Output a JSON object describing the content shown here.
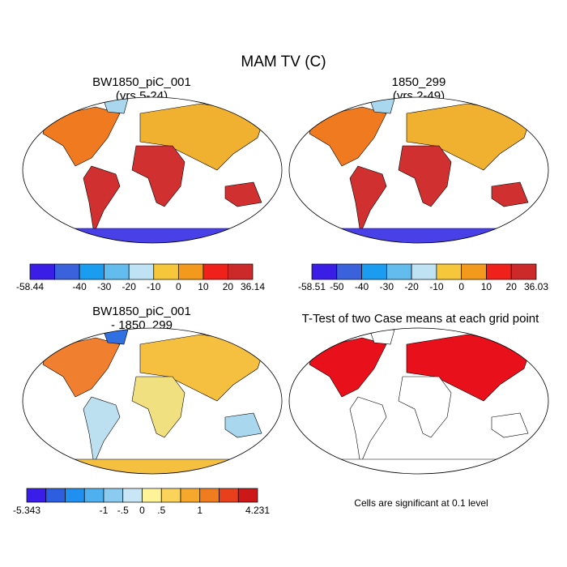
{
  "title": "MAM TV (C)",
  "panels": [
    {
      "title": [
        "BW1850_piC_001",
        "(yrs 5-24)"
      ]
    },
    {
      "title": [
        "1850_299",
        "(yrs 2-49)"
      ]
    },
    {
      "title": [
        "BW1850_piC_001",
        "- 1850_299"
      ]
    },
    {
      "title": [
        "T-Test of two Case means at each grid point"
      ]
    }
  ],
  "colorbars": [
    {
      "colors": [
        "#3b1ee6",
        "#3a62dc",
        "#1a9cf0",
        "#62bdee",
        "#bfe3f4",
        "#f6c73a",
        "#f39a1c",
        "#f0201a",
        "#cc2a2a"
      ],
      "labels": [
        "-58.44",
        null,
        "-40",
        "-30",
        "-20",
        "-10",
        "0",
        "10",
        "20",
        "36.14"
      ]
    },
    {
      "colors": [
        "#3b1ee6",
        "#3a62dc",
        "#1a9cf0",
        "#62bdee",
        "#bfe3f4",
        "#f6c73a",
        "#f39a1c",
        "#f0201a",
        "#cc2a2a"
      ],
      "labels": [
        "-58.51",
        "-50",
        "-40",
        "-30",
        "-20",
        "-10",
        "0",
        "10",
        "20",
        "36.03"
      ]
    },
    {
      "colors": [
        "#3a1de8",
        "#2e5ee0",
        "#1f8ff0",
        "#4fb0f0",
        "#8ccbf0",
        "#c8e6f5",
        "#fff39a",
        "#fbd25a",
        "#f6a82c",
        "#f07c20",
        "#e8401c",
        "#cc1818"
      ],
      "labels": [
        "-5.343",
        null,
        null,
        null,
        "-1",
        "-.5",
        "0",
        ".5",
        null,
        "1",
        null,
        null,
        "4.231"
      ]
    }
  ],
  "note": "Cells are significant at 0.1 level"
}
